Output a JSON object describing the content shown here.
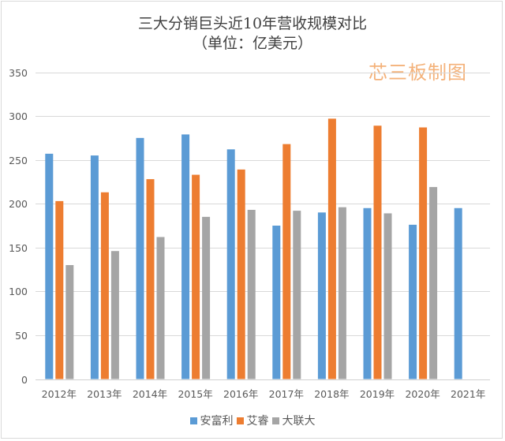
{
  "chart_data": {
    "type": "bar",
    "title": "三大分销巨头近10年营收规模对比",
    "subtitle": "（单位：亿美元）",
    "watermark": "芯三板制图",
    "xlabel": "",
    "ylabel": "",
    "ylim": [
      0,
      350
    ],
    "yticks": [
      0,
      50,
      100,
      150,
      200,
      250,
      300,
      350
    ],
    "grid": true,
    "legend_position": "bottom",
    "categories": [
      "2012年",
      "2013年",
      "2014年",
      "2015年",
      "2016年",
      "2017年",
      "2018年",
      "2019年",
      "2020年",
      "2021年"
    ],
    "series": [
      {
        "name": "安富利",
        "color": "#5B9BD5",
        "values": [
          257,
          255,
          275,
          279,
          262,
          175,
          190,
          195,
          176,
          195
        ]
      },
      {
        "name": "艾睿",
        "color": "#ED7D31",
        "values": [
          203,
          213,
          228,
          233,
          239,
          268,
          297,
          289,
          287,
          null
        ]
      },
      {
        "name": "大联大",
        "color": "#A5A5A5",
        "values": [
          130,
          146,
          162,
          185,
          193,
          192,
          196,
          189,
          219,
          null
        ]
      }
    ]
  }
}
